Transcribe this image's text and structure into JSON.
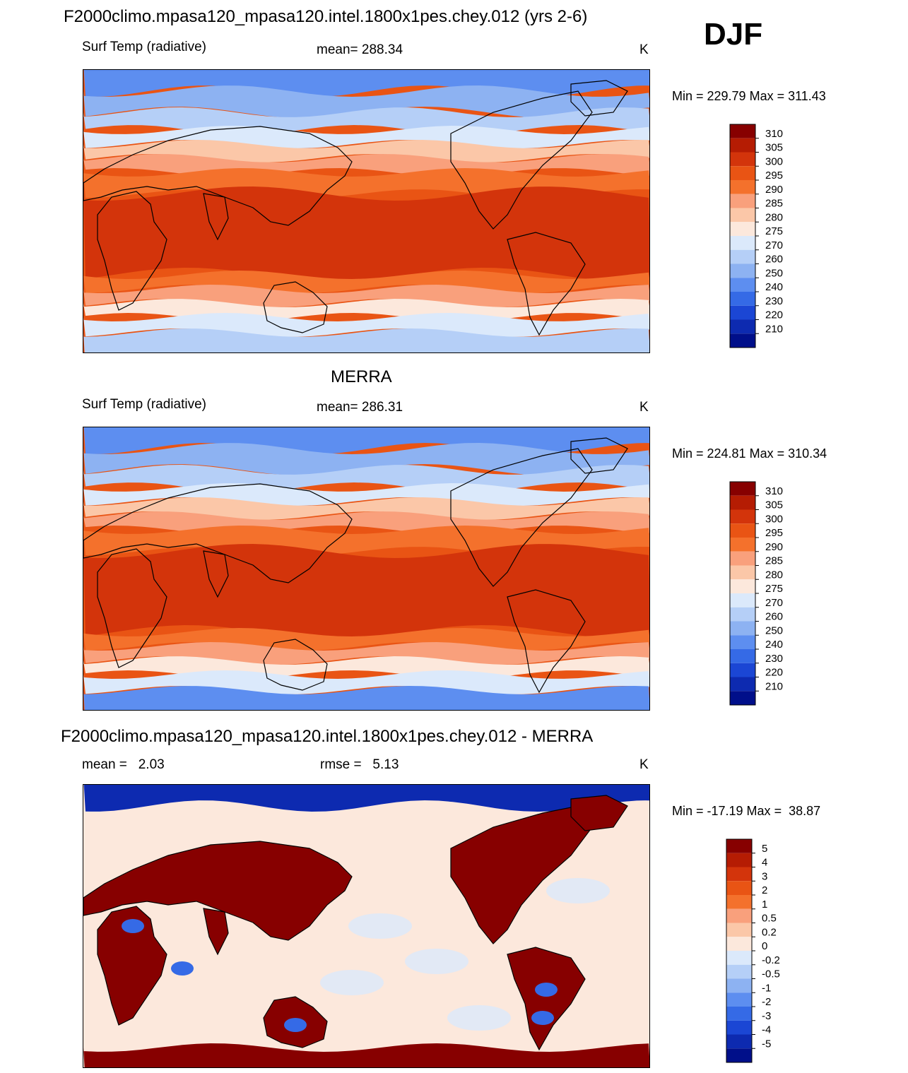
{
  "page_title": "F2000climo.mpasa120_mpasa120.intel.1800x1pes.chey.012 (yrs 2-6)",
  "season": "DJF",
  "chart_data": [
    {
      "type": "heatmap",
      "panel": "model",
      "title": "F2000climo.mpasa120_mpasa120.intel.1800x1pes.chey.012 (yrs 2-6)",
      "variable": "Surf Temp (radiative)",
      "stat_text": "mean= 288.34",
      "units": "K",
      "minmax_text": "Min = 229.79 Max = 311.43",
      "min": 229.79,
      "max": 311.43,
      "colorbar": {
        "labels": [
          "310",
          "305",
          "300",
          "295",
          "290",
          "285",
          "280",
          "275",
          "270",
          "260",
          "250",
          "240",
          "230",
          "220",
          "210"
        ],
        "colors": [
          "#870000",
          "#b51c03",
          "#d3340b",
          "#e95414",
          "#f4712c",
          "#f9a07c",
          "#fbc7a8",
          "#fce8dc",
          "#dbe9fb",
          "#b5cff7",
          "#8db2f2",
          "#5d8ef0",
          "#356ae6",
          "#1b46d4",
          "#0d2ab0",
          "#000f8a"
        ]
      }
    },
    {
      "type": "heatmap",
      "panel": "obs",
      "title": "MERRA",
      "variable": "Surf Temp (radiative)",
      "stat_text": "mean= 286.31",
      "units": "K",
      "minmax_text": "Min = 224.81 Max = 310.34",
      "min": 224.81,
      "max": 310.34,
      "colorbar": {
        "labels": [
          "310",
          "305",
          "300",
          "295",
          "290",
          "285",
          "280",
          "275",
          "270",
          "260",
          "250",
          "240",
          "230",
          "220",
          "210"
        ],
        "colors": [
          "#870000",
          "#b51c03",
          "#d3340b",
          "#e95414",
          "#f4712c",
          "#f9a07c",
          "#fbc7a8",
          "#fce8dc",
          "#dbe9fb",
          "#b5cff7",
          "#8db2f2",
          "#5d8ef0",
          "#356ae6",
          "#1b46d4",
          "#0d2ab0",
          "#000f8a"
        ]
      }
    },
    {
      "type": "heatmap",
      "panel": "difference",
      "title": "F2000climo.mpasa120_mpasa120.intel.1800x1pes.chey.012 - MERRA",
      "stat_mean_text": "mean =   2.03",
      "stat_rmse_text": "rmse =   5.13",
      "units": "K",
      "minmax_text": "Min = -17.19 Max =  38.87",
      "min": -17.19,
      "max": 38.87,
      "mean": 2.03,
      "rmse": 5.13,
      "colorbar": {
        "labels": [
          "5",
          "4",
          "3",
          "2",
          "1",
          "0.5",
          "0.2",
          "0",
          "-0.2",
          "-0.5",
          "-1",
          "-2",
          "-3",
          "-4",
          "-5"
        ],
        "colors": [
          "#870000",
          "#b51c03",
          "#d3340b",
          "#e95414",
          "#f4712c",
          "#f9a07c",
          "#fbc7a8",
          "#fce8dc",
          "#dbe9fb",
          "#b5cff7",
          "#8db2f2",
          "#5d8ef0",
          "#356ae6",
          "#1b46d4",
          "#0d2ab0",
          "#000f8a"
        ]
      }
    }
  ]
}
